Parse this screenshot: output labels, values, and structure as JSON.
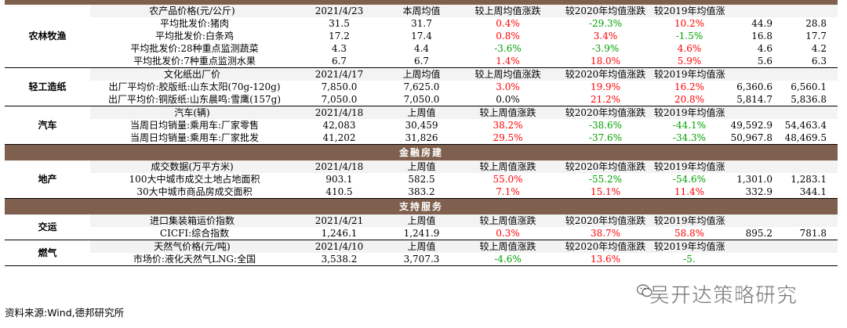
{
  "sections": [
    {
      "label": "农林牧渔",
      "header": [
        "农产品价格(元/公斤)",
        "2021/4/23",
        "本周均值",
        "较上周均值涨跌",
        "较2020年均值涨跌",
        "较2019年均值涨跌",
        "",
        ""
      ],
      "rows": [
        [
          "平均批发价:猪肉",
          "31.5",
          "31.7",
          "0.4%",
          "-29.3%",
          "10.2%",
          "44.9",
          "28.8"
        ],
        [
          "平均批发价:白条鸡",
          "17.2",
          "17.4",
          "0.8%",
          "3.4%",
          "-1.5%",
          "16.8",
          "17.7"
        ],
        [
          "平均批发价:28种重点监测蔬菜",
          "4.3",
          "4.4",
          "-3.6%",
          "-3.9%",
          "4.6%",
          "4.6",
          "4.2"
        ],
        [
          "平均批发价:7种重点监测水果",
          "6.7",
          "6.7",
          "1.4%",
          "18.0%",
          "5.9%",
          "5.6",
          "6.3"
        ]
      ]
    },
    {
      "label": "轻工造纸",
      "header": [
        "文化纸出厂价",
        "2021/4/17",
        "上周均值",
        "较上周均值涨跌",
        "较2020年均值涨跌",
        "较2019年均值涨跌",
        "",
        ""
      ],
      "rows": [
        [
          "出厂平均价:胶版纸:山东太阳(70g-120g)",
          "7,850.0",
          "7,625.0",
          "3.0%",
          "19.9%",
          "16.2%",
          "6,360.6",
          "6,560.1"
        ],
        [
          "出厂平均价:铜版纸:山东晨鸣:雪鹰(157g)",
          "7,050.0",
          "7,050.0",
          "0.0%",
          "21.2%",
          "20.8%",
          "5,814.7",
          "5,836.8"
        ]
      ]
    },
    {
      "label": "汽车",
      "header": [
        "汽车(辆)",
        "2021/4/18",
        "上周值",
        "较上周值涨跌",
        "较2020年均值涨跌",
        "较2019年均值涨跌",
        "",
        ""
      ],
      "rows": [
        [
          "当周日均销量:乘用车:厂家零售",
          "42,083",
          "30,459",
          "38.2%",
          "-38.6%",
          "-44.1%",
          "49,592.9",
          "54,463.4"
        ],
        [
          "当周日均销量:乘用车:厂家批发",
          "41,202",
          "31,826",
          "29.5%",
          "-37.6%",
          "-34.3%",
          "50,967.8",
          "48,469.5"
        ]
      ]
    },
    {
      "band": "金融房建"
    },
    {
      "label": "地产",
      "header": [
        "成交数据(万平方米)",
        "2021/4/18",
        "上周值",
        "较上周值涨跌",
        "较2020年均值涨跌",
        "较2019年均值涨跌",
        "",
        ""
      ],
      "rows": [
        [
          "100大中城市成交土地占地面积",
          "903.1",
          "582.5",
          "55.0%",
          "-55.2%",
          "-54.6%",
          "1,301.0",
          "1,283.1"
        ],
        [
          "30大中城市商品房成交面积",
          "410.5",
          "383.2",
          "7.1%",
          "15.1%",
          "11.4%",
          "332.9",
          "344.1"
        ]
      ]
    },
    {
      "band": "支持服务"
    },
    {
      "label": "交运",
      "header": [
        "进口集装箱运价指数",
        "2021/4/21",
        "上周值",
        "较上周值涨跌",
        "较2020年均值涨跌",
        "较2019年均值涨跌",
        "",
        ""
      ],
      "rows": [
        [
          "CICFI:综合指数",
          "1,246.1",
          "1,241.9",
          "0.3%",
          "38.7%",
          "58.8%",
          "895.2",
          "781.8"
        ]
      ]
    },
    {
      "label": "燃气",
      "header": [
        "天然气价格(元/吨)",
        "2021/4/10",
        "上周值",
        "较上周值涨跌",
        "较2020年均值涨跌",
        "较2019年均值涨跌",
        "",
        ""
      ],
      "rows": [
        [
          "市场价:液化天然气LNG:全国",
          "3,538.2",
          "3,707.3",
          "-4.6%",
          "13.6%",
          "-5.",
          "",
          ""
        ]
      ]
    }
  ],
  "colors": {
    "up": "#ff0000",
    "down": "#00a000",
    "band": "#7f5f4d",
    "header_bg": "#f3f3f3"
  },
  "source": "资料来源:Wind,德邦研究所",
  "watermark": "吴开达策略研究"
}
